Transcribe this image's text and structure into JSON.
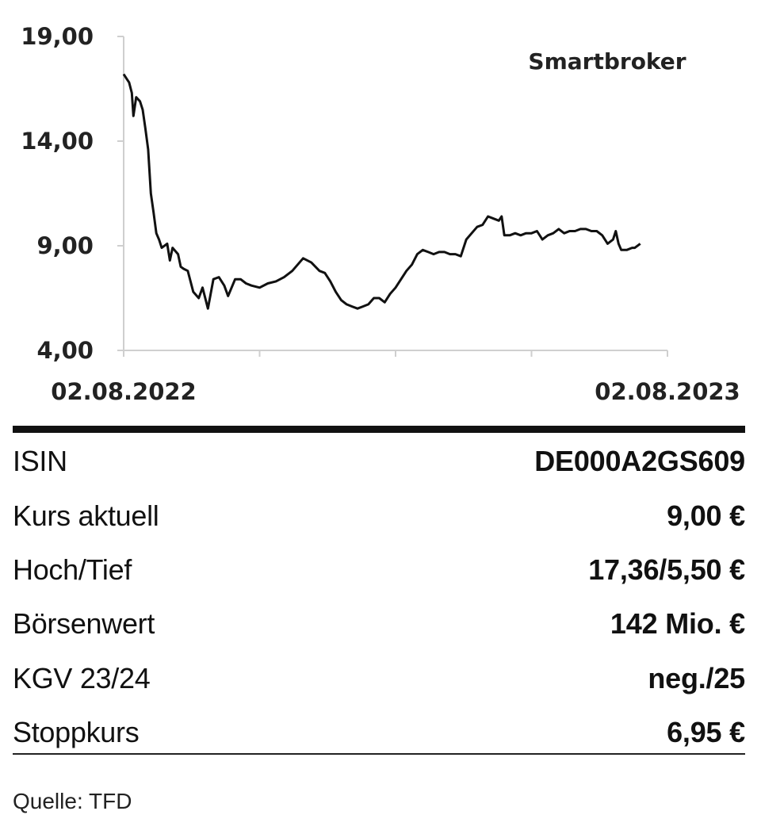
{
  "chart_data": {
    "type": "line",
    "title": "Smartbroker",
    "xlabel": "",
    "ylabel": "",
    "x_tick_labels": [
      "02.08.2022",
      "02.08.2023"
    ],
    "y_ticks": [
      4.0,
      9.0,
      14.0,
      19.0
    ],
    "y_tick_labels": [
      "4,00",
      "9,00",
      "14,00",
      "19,00"
    ],
    "ylim": [
      4,
      19
    ],
    "xlim": [
      0,
      1
    ],
    "grid": false,
    "series": [
      {
        "points": [
          [
            0.0,
            17.2
          ],
          [
            0.005,
            17.0
          ],
          [
            0.01,
            16.8
          ],
          [
            0.015,
            16.3
          ],
          [
            0.018,
            15.2
          ],
          [
            0.023,
            16.1
          ],
          [
            0.03,
            15.9
          ],
          [
            0.035,
            15.5
          ],
          [
            0.04,
            14.6
          ],
          [
            0.045,
            13.6
          ],
          [
            0.05,
            11.5
          ],
          [
            0.055,
            10.6
          ],
          [
            0.06,
            9.6
          ],
          [
            0.065,
            9.3
          ],
          [
            0.07,
            8.9
          ],
          [
            0.08,
            9.1
          ],
          [
            0.085,
            8.3
          ],
          [
            0.09,
            8.9
          ],
          [
            0.1,
            8.6
          ],
          [
            0.105,
            8.0
          ],
          [
            0.11,
            7.9
          ],
          [
            0.118,
            7.8
          ],
          [
            0.128,
            6.8
          ],
          [
            0.138,
            6.5
          ],
          [
            0.145,
            7.0
          ],
          [
            0.155,
            6.0
          ],
          [
            0.165,
            7.4
          ],
          [
            0.175,
            7.5
          ],
          [
            0.185,
            7.1
          ],
          [
            0.192,
            6.6
          ],
          [
            0.205,
            7.4
          ],
          [
            0.215,
            7.4
          ],
          [
            0.225,
            7.2
          ],
          [
            0.235,
            7.1
          ],
          [
            0.25,
            7.0
          ],
          [
            0.265,
            7.2
          ],
          [
            0.28,
            7.3
          ],
          [
            0.295,
            7.5
          ],
          [
            0.31,
            7.8
          ],
          [
            0.32,
            8.1
          ],
          [
            0.33,
            8.4
          ],
          [
            0.345,
            8.2
          ],
          [
            0.36,
            7.8
          ],
          [
            0.37,
            7.7
          ],
          [
            0.38,
            7.3
          ],
          [
            0.39,
            6.8
          ],
          [
            0.4,
            6.4
          ],
          [
            0.41,
            6.2
          ],
          [
            0.42,
            6.1
          ],
          [
            0.43,
            6.0
          ],
          [
            0.44,
            6.1
          ],
          [
            0.45,
            6.2
          ],
          [
            0.46,
            6.5
          ],
          [
            0.47,
            6.5
          ],
          [
            0.48,
            6.3
          ],
          [
            0.49,
            6.7
          ],
          [
            0.5,
            7.0
          ],
          [
            0.51,
            7.4
          ],
          [
            0.52,
            7.8
          ],
          [
            0.53,
            8.1
          ],
          [
            0.54,
            8.6
          ],
          [
            0.55,
            8.8
          ],
          [
            0.56,
            8.7
          ],
          [
            0.57,
            8.6
          ],
          [
            0.58,
            8.7
          ],
          [
            0.59,
            8.7
          ],
          [
            0.6,
            8.6
          ],
          [
            0.61,
            8.6
          ],
          [
            0.62,
            8.5
          ],
          [
            0.63,
            9.3
          ],
          [
            0.64,
            9.6
          ],
          [
            0.65,
            9.9
          ],
          [
            0.66,
            10.0
          ],
          [
            0.67,
            10.4
          ],
          [
            0.68,
            10.3
          ],
          [
            0.69,
            10.2
          ],
          [
            0.695,
            10.4
          ],
          [
            0.7,
            9.5
          ],
          [
            0.71,
            9.5
          ],
          [
            0.72,
            9.6
          ],
          [
            0.73,
            9.5
          ],
          [
            0.74,
            9.6
          ],
          [
            0.75,
            9.6
          ],
          [
            0.76,
            9.7
          ],
          [
            0.77,
            9.3
          ],
          [
            0.78,
            9.5
          ],
          [
            0.79,
            9.6
          ],
          [
            0.8,
            9.8
          ],
          [
            0.81,
            9.6
          ],
          [
            0.82,
            9.7
          ],
          [
            0.83,
            9.7
          ],
          [
            0.84,
            9.8
          ],
          [
            0.85,
            9.8
          ],
          [
            0.86,
            9.7
          ],
          [
            0.87,
            9.7
          ],
          [
            0.88,
            9.5
          ],
          [
            0.89,
            9.1
          ],
          [
            0.9,
            9.3
          ],
          [
            0.905,
            9.7
          ],
          [
            0.91,
            9.1
          ],
          [
            0.915,
            8.8
          ],
          [
            0.925,
            8.8
          ],
          [
            0.935,
            8.9
          ],
          [
            0.94,
            8.9
          ],
          [
            0.95,
            9.1
          ]
        ]
      }
    ]
  },
  "table": {
    "rows": [
      {
        "label": "ISIN",
        "value": "DE000A2GS609"
      },
      {
        "label": "Kurs aktuell",
        "value": "9,00 €"
      },
      {
        "label": "Hoch/Tief",
        "value": "17,36/5,50 €"
      },
      {
        "label": "Börsenwert",
        "value": "142 Mio. €"
      },
      {
        "label": "KGV 23/24",
        "value": "neg./25"
      },
      {
        "label": "Stoppkurs",
        "value": "6,95 €"
      }
    ]
  },
  "source": "Quelle: TFD",
  "colors": {
    "line": "#111111",
    "axis": "#cfcfcf",
    "text": "#222222"
  }
}
